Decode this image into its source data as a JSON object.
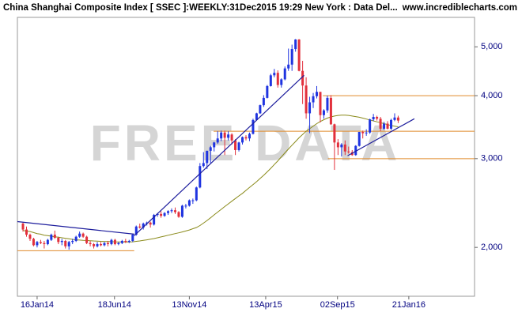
{
  "chart_data": {
    "type": "candlestick",
    "title": "China Shanghai Composite Index [ SSEC ]:WEEKLY:31Dec2015 19:29 New York : Data Del...",
    "source": "www.incrediblecharts.com",
    "watermark": "FREE DATA",
    "log_scale": true,
    "up_color": "#1f34e0",
    "down_color": "#e2303c",
    "xlim": [
      "2013-12-08",
      "2016-05-30"
    ],
    "xticks": [
      {
        "value": "2014-01-16",
        "label": "16Jan14"
      },
      {
        "value": "2014-06-18",
        "label": "18Jun14"
      },
      {
        "value": "2014-11-13",
        "label": "13Nov14"
      },
      {
        "value": "2015-04-13",
        "label": "13Apr15"
      },
      {
        "value": "2015-09-02",
        "label": "02Sep15"
      },
      {
        "value": "2016-01-21",
        "label": "21Jan16"
      }
    ],
    "ylim": [
      1600,
      5720
    ],
    "yticks": [
      {
        "value": 2000,
        "label": "2,000"
      },
      {
        "value": 3000,
        "label": "3,000"
      },
      {
        "value": 4000,
        "label": "4,000"
      },
      {
        "value": 5000,
        "label": "5,000"
      }
    ],
    "x": [
      "2013-12-19",
      "2013-12-26",
      "2014-01-02",
      "2014-01-09",
      "2014-01-16",
      "2014-01-23",
      "2014-01-30",
      "2014-02-06",
      "2014-02-13",
      "2014-02-20",
      "2014-02-27",
      "2014-03-06",
      "2014-03-13",
      "2014-03-20",
      "2014-03-27",
      "2014-04-03",
      "2014-04-10",
      "2014-04-17",
      "2014-04-24",
      "2014-05-01",
      "2014-05-08",
      "2014-05-15",
      "2014-05-22",
      "2014-05-29",
      "2014-06-05",
      "2014-06-12",
      "2014-06-19",
      "2014-06-26",
      "2014-07-03",
      "2014-07-10",
      "2014-07-17",
      "2014-07-24",
      "2014-07-31",
      "2014-08-07",
      "2014-08-14",
      "2014-08-21",
      "2014-08-28",
      "2014-09-04",
      "2014-09-11",
      "2014-09-18",
      "2014-09-25",
      "2014-10-02",
      "2014-10-09",
      "2014-10-16",
      "2014-10-23",
      "2014-10-30",
      "2014-11-06",
      "2014-11-13",
      "2014-11-20",
      "2014-11-27",
      "2014-12-04",
      "2014-12-11",
      "2014-12-18",
      "2014-12-25",
      "2015-01-01",
      "2015-01-08",
      "2015-01-15",
      "2015-01-22",
      "2015-01-29",
      "2015-02-05",
      "2015-02-12",
      "2015-02-19",
      "2015-02-26",
      "2015-03-05",
      "2015-03-12",
      "2015-03-19",
      "2015-03-26",
      "2015-04-02",
      "2015-04-09",
      "2015-04-16",
      "2015-04-23",
      "2015-04-30",
      "2015-05-07",
      "2015-05-14",
      "2015-05-21",
      "2015-05-28",
      "2015-06-04",
      "2015-06-11",
      "2015-06-18",
      "2015-06-25",
      "2015-07-02",
      "2015-07-09",
      "2015-07-16",
      "2015-07-23",
      "2015-07-30",
      "2015-08-06",
      "2015-08-13",
      "2015-08-20",
      "2015-08-27",
      "2015-09-03",
      "2015-09-10",
      "2015-09-17",
      "2015-09-24",
      "2015-10-01",
      "2015-10-08",
      "2015-10-15",
      "2015-10-22",
      "2015-10-29",
      "2015-11-05",
      "2015-11-12",
      "2015-11-19",
      "2015-11-26",
      "2015-12-03",
      "2015-12-10",
      "2015-12-17",
      "2015-12-24",
      "2015-12-31"
    ],
    "open": [
      2230,
      2170,
      2120,
      2080,
      2020,
      2050,
      2040,
      2030,
      2070,
      2120,
      2090,
      2050,
      2060,
      2010,
      2050,
      2060,
      2100,
      2130,
      2100,
      2040,
      2030,
      2010,
      2030,
      2020,
      2040,
      2030,
      2070,
      2030,
      2040,
      2060,
      2050,
      2060,
      2120,
      2200,
      2190,
      2230,
      2240,
      2220,
      2320,
      2330,
      2310,
      2340,
      2360,
      2370,
      2350,
      2300,
      2420,
      2420,
      2480,
      2480,
      2630,
      2900,
      2940,
      3110,
      3160,
      3230,
      3290,
      3380,
      3300,
      3350,
      3260,
      3120,
      3230,
      3310,
      3290,
      3360,
      3580,
      3690,
      3830,
      3960,
      4180,
      4390,
      4440,
      4200,
      4310,
      4530,
      4610,
      4950,
      5170,
      4480,
      4190,
      3690,
      3880,
      3990,
      4070,
      3660,
      3740,
      3960,
      3510,
      3230,
      3160,
      3200,
      3100,
      3090,
      3050,
      3180,
      3390,
      3370,
      3380,
      3590,
      3630,
      3600,
      3440,
      3520,
      3440,
      3580,
      3620
    ],
    "high": [
      2240,
      2200,
      2130,
      2090,
      2060,
      2070,
      2060,
      2080,
      2130,
      2160,
      2100,
      2080,
      2070,
      2060,
      2080,
      2110,
      2150,
      2140,
      2110,
      2060,
      2040,
      2050,
      2050,
      2050,
      2060,
      2080,
      2080,
      2050,
      2070,
      2080,
      2070,
      2130,
      2210,
      2230,
      2240,
      2250,
      2250,
      2330,
      2340,
      2360,
      2350,
      2370,
      2390,
      2400,
      2360,
      2430,
      2440,
      2490,
      2500,
      2640,
      2940,
      3090,
      3110,
      3180,
      3240,
      3400,
      3410,
      3410,
      3400,
      3370,
      3280,
      3240,
      3320,
      3340,
      3380,
      3600,
      3700,
      3840,
      4010,
      4200,
      4420,
      4520,
      4490,
      4330,
      4570,
      4960,
      5050,
      5180,
      5180,
      4690,
      4350,
      3980,
      4050,
      4180,
      4070,
      3760,
      4000,
      4010,
      3520,
      3280,
      3220,
      3260,
      3170,
      3120,
      3190,
      3390,
      3410,
      3430,
      3600,
      3680,
      3650,
      3630,
      3550,
      3560,
      3600,
      3690,
      3650
    ],
    "low": [
      2150,
      2100,
      2060,
      2010,
      2000,
      2030,
      1990,
      2020,
      2060,
      2080,
      2030,
      2020,
      1990,
      1980,
      2030,
      2050,
      2090,
      2090,
      2030,
      2010,
      1990,
      2000,
      2010,
      2010,
      2010,
      2020,
      2020,
      2020,
      2030,
      2040,
      2040,
      2050,
      2110,
      2180,
      2170,
      2210,
      2190,
      2210,
      2300,
      2290,
      2300,
      2320,
      2340,
      2330,
      2290,
      2290,
      2390,
      2410,
      2440,
      2470,
      2620,
      2880,
      2860,
      2940,
      3100,
      3210,
      3250,
      3050,
      3260,
      3200,
      3050,
      3100,
      3200,
      3260,
      3250,
      3350,
      3570,
      3680,
      3800,
      3950,
      4170,
      4350,
      4150,
      4150,
      4290,
      4480,
      4480,
      4890,
      4470,
      3850,
      3600,
      3370,
      3780,
      3950,
      3540,
      3600,
      3700,
      3500,
      2850,
      3050,
      3030,
      3050,
      3070,
      3040,
      3040,
      3170,
      3290,
      3330,
      3360,
      3560,
      3570,
      3400,
      3420,
      3430,
      3420,
      3560,
      3530
    ],
    "close": [
      2170,
      2120,
      2080,
      2020,
      2050,
      2040,
      2030,
      2070,
      2120,
      2090,
      2050,
      2060,
      2010,
      2050,
      2060,
      2100,
      2130,
      2100,
      2040,
      2030,
      2010,
      2030,
      2020,
      2040,
      2030,
      2070,
      2030,
      2040,
      2060,
      2050,
      2060,
      2120,
      2200,
      2190,
      2230,
      2240,
      2220,
      2320,
      2330,
      2310,
      2340,
      2360,
      2370,
      2350,
      2300,
      2420,
      2420,
      2480,
      2480,
      2630,
      2900,
      2940,
      3110,
      3160,
      3230,
      3290,
      3380,
      3300,
      3350,
      3260,
      3120,
      3230,
      3310,
      3290,
      3360,
      3580,
      3690,
      3830,
      3960,
      4180,
      4390,
      4440,
      4200,
      4310,
      4530,
      4610,
      4950,
      5170,
      4480,
      4190,
      3690,
      3880,
      3990,
      4070,
      3660,
      3740,
      3960,
      3510,
      3230,
      3160,
      3200,
      3100,
      3090,
      3050,
      3180,
      3390,
      3370,
      3380,
      3590,
      3630,
      3600,
      3440,
      3520,
      3440,
      3580,
      3620,
      3570
    ],
    "moving_average": {
      "color": "#8a8a1a",
      "values": [
        2160,
        2155,
        2150,
        2140,
        2130,
        2125,
        2115,
        2110,
        2105,
        2100,
        2095,
        2090,
        2085,
        2080,
        2075,
        2070,
        2068,
        2066,
        2064,
        2062,
        2060,
        2058,
        2056,
        2055,
        2054,
        2053,
        2052,
        2051,
        2050,
        2050,
        2050,
        2052,
        2056,
        2060,
        2065,
        2070,
        2076,
        2082,
        2090,
        2098,
        2106,
        2114,
        2122,
        2130,
        2138,
        2146,
        2156,
        2166,
        2178,
        2190,
        2210,
        2235,
        2262,
        2290,
        2320,
        2350,
        2380,
        2410,
        2440,
        2470,
        2500,
        2530,
        2560,
        2595,
        2630,
        2665,
        2700,
        2740,
        2780,
        2825,
        2870,
        2920,
        2970,
        3025,
        3080,
        3135,
        3190,
        3245,
        3300,
        3350,
        3400,
        3440,
        3480,
        3520,
        3555,
        3585,
        3610,
        3630,
        3645,
        3655,
        3660,
        3660,
        3655,
        3645,
        3635,
        3625,
        3610,
        3595,
        3580,
        3565,
        3550,
        3535,
        3520,
        3505,
        3490,
        3480,
        3470
      ]
    },
    "trendlines": [
      {
        "color": "#1c1c9c",
        "x": [
          "2013-12-08",
          "2014-07-27"
        ],
        "values": [
          2250,
          2125
        ]
      },
      {
        "color": "#1c1c9c",
        "x": [
          "2014-07-27",
          "2015-06-28"
        ],
        "values": [
          2110,
          4390
        ]
      },
      {
        "color": "#1c1c9c",
        "x": [
          "2015-09-22",
          "2016-02-01"
        ],
        "values": [
          3040,
          3600
        ]
      }
    ],
    "levels": [
      {
        "color": "#e08a2a",
        "x": [
          "2013-12-08",
          "2014-07-27"
        ],
        "value": 1970
      },
      {
        "color": "#e08a2a",
        "x": [
          "2014-12-31",
          "2016-05-30"
        ],
        "value": 3400
      },
      {
        "color": "#e08a2a",
        "x": [
          "2015-08-04",
          "2016-05-30"
        ],
        "value": 4000
      },
      {
        "color": "#e08a2a",
        "x": [
          "2015-08-14",
          "2016-05-30"
        ],
        "value": 3000
      }
    ]
  }
}
